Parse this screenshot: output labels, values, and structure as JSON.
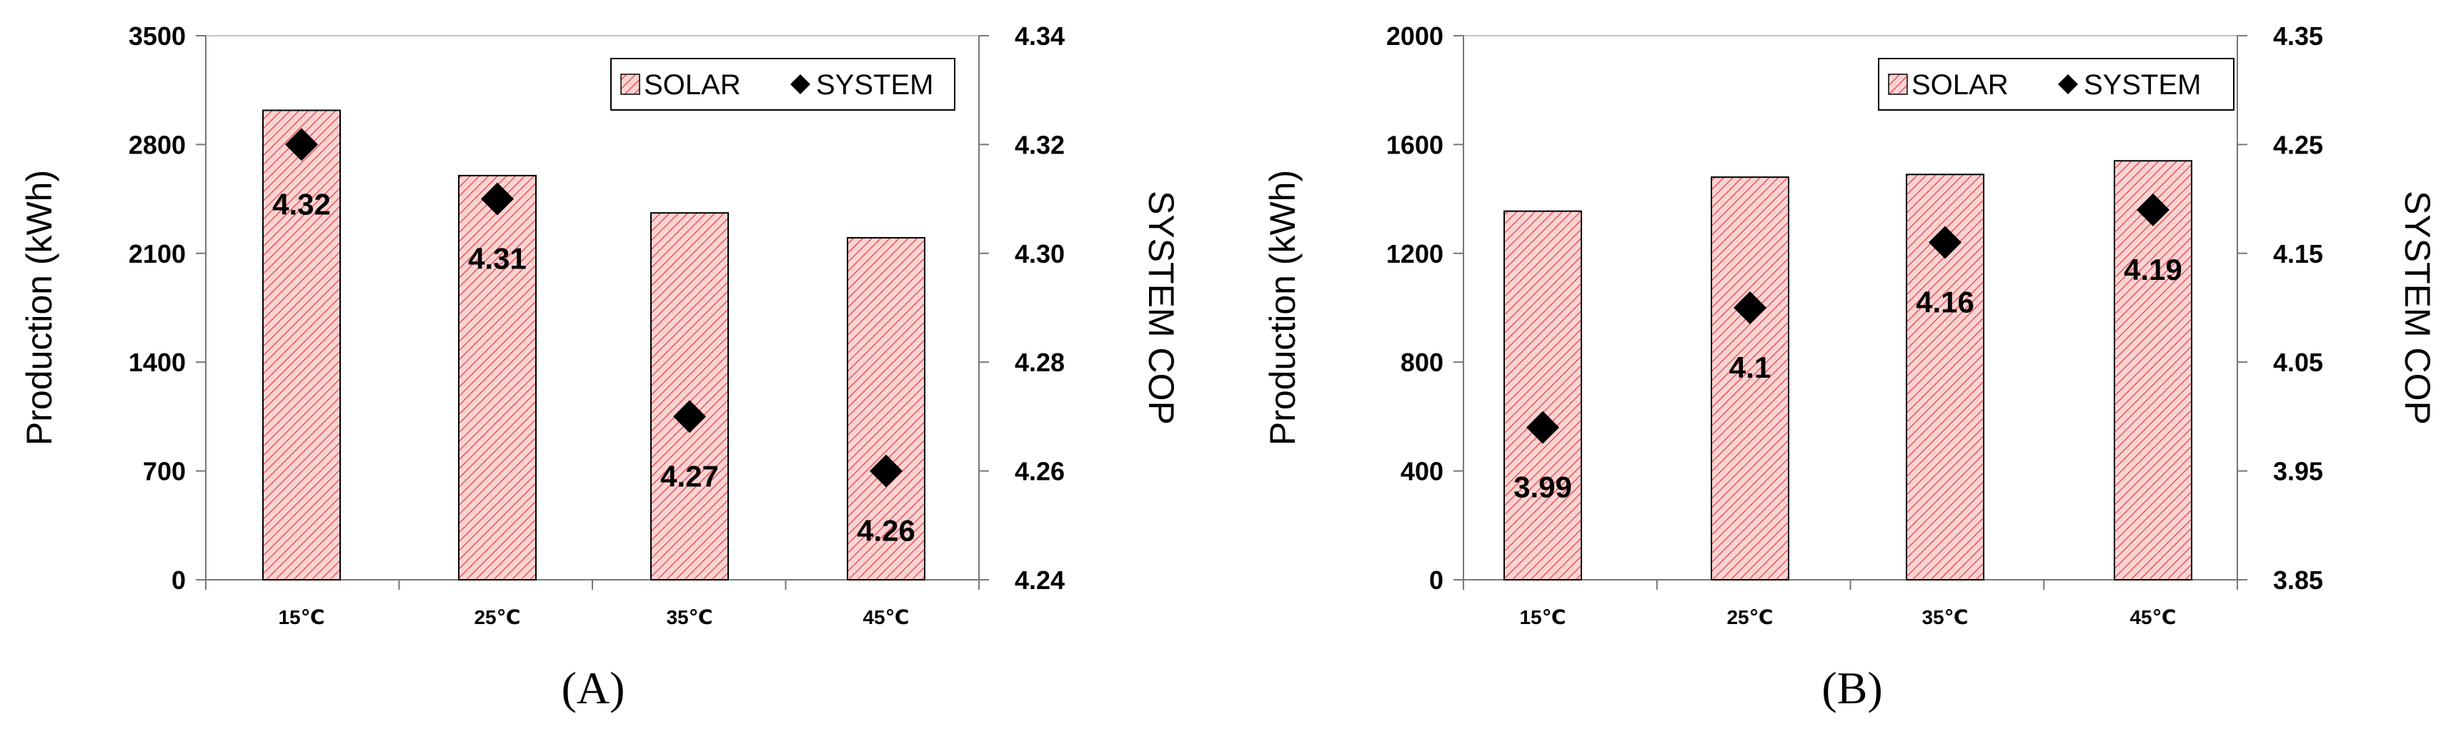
{
  "chart_data": [
    {
      "type": "bar",
      "panel_label": "(A)",
      "categories": [
        "15℃",
        "25℃",
        "35℃",
        "45℃"
      ],
      "series": [
        {
          "name": "SOLAR",
          "kind": "bar",
          "axis": "left",
          "values": [
            3020,
            2600,
            2360,
            2200
          ]
        },
        {
          "name": "SYSTEM",
          "kind": "marker",
          "axis": "right",
          "values": [
            4.32,
            4.31,
            4.27,
            4.26
          ],
          "labels": [
            "4.32",
            "4.31",
            "4.27",
            "4.26"
          ]
        }
      ],
      "ylabel": "Production (kWh)",
      "y2label": "SYSTEM COP",
      "ylim": [
        0,
        3500
      ],
      "yticks": [
        "0",
        "700",
        "1400",
        "2100",
        "2800",
        "3500"
      ],
      "y2lim": [
        4.24,
        4.34
      ],
      "y2ticks": [
        "4.24",
        "4.26",
        "4.28",
        "4.30",
        "4.32",
        "4.34"
      ],
      "grid": false,
      "legend": "top-right",
      "colors": {
        "bar_fill": "#fbd3d3",
        "bar_hatch": "#e23c3c",
        "marker": "#000000"
      }
    },
    {
      "type": "bar",
      "panel_label": "(B)",
      "categories": [
        "15℃",
        "25℃",
        "35℃",
        "45℃"
      ],
      "series": [
        {
          "name": "SOLAR",
          "kind": "bar",
          "axis": "left",
          "values": [
            1355,
            1480,
            1490,
            1540
          ]
        },
        {
          "name": "SYSTEM",
          "kind": "marker",
          "axis": "right",
          "values": [
            3.99,
            4.1,
            4.16,
            4.19
          ],
          "labels": [
            "3.99",
            "4.1",
            "4.16",
            "4.19"
          ]
        }
      ],
      "ylabel": "Production (kWh)",
      "y2label": "SYSTEM COP",
      "ylim": [
        0,
        2000
      ],
      "yticks": [
        "0",
        "400",
        "800",
        "1200",
        "1600",
        "2000"
      ],
      "y2lim": [
        3.85,
        4.35
      ],
      "y2ticks": [
        "3.85",
        "3.95",
        "4.05",
        "4.15",
        "4.25",
        "4.35"
      ],
      "grid": false,
      "legend": "top-right",
      "colors": {
        "bar_fill": "#fbd3d3",
        "bar_hatch": "#e23c3c",
        "marker": "#000000"
      }
    }
  ]
}
